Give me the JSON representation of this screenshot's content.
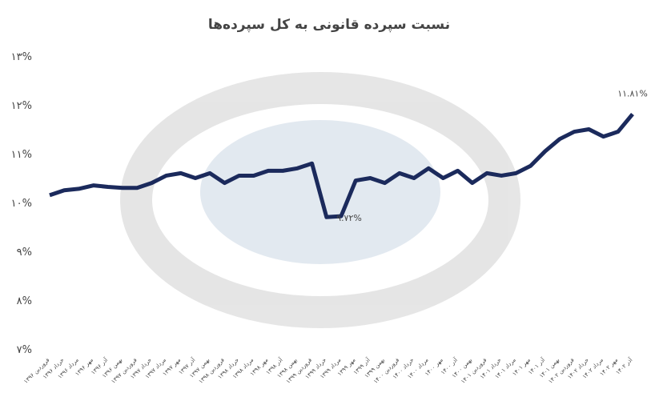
{
  "chart_data": {
    "type": "line",
    "title": "نسبت سپرده قانونی به کل سپرده‌ها",
    "categories": [
      "فروردین ۱۳۹۶",
      "خرداد ۱۳۹۶",
      "مرداد ۱۳۹۶",
      "مهر ۱۳۹۶",
      "آذر ۱۳۹۶",
      "بهمن ۱۳۹۶",
      "فروردین ۱۳۹۷",
      "خرداد ۱۳۹۷",
      "مرداد ۱۳۹۷",
      "مهر ۱۳۹۷",
      "آذر ۱۳۹۷",
      "بهمن ۱۳۹۷",
      "فروردین ۱۳۹۸",
      "خرداد ۱۳۹۸",
      "مرداد ۱۳۹۸",
      "مهر ۱۳۹۸",
      "آذر ۱۳۹۸",
      "بهمن ۱۳۹۸",
      "فروردین ۱۳۹۹",
      "خرداد ۱۳۹۹",
      "مرداد ۱۳۹۹",
      "مهر ۱۳۹۹",
      "آذر ۱۳۹۹",
      "بهمن ۱۳۹۹",
      "فروردین ۱۴۰۰",
      "خرداد ۱۴۰۰",
      "مرداد ۱۴۰۰",
      "مهر ۱۴۰۰",
      "آذر ۱۴۰۰",
      "بهمن ۱۴۰۰",
      "فروردین ۱۴۰۱",
      "خرداد ۱۴۰۱",
      "مرداد ۱۴۰۱",
      "مهر ۱۴۰۱",
      "آذر ۱۴۰۱",
      "بهمن ۱۴۰۱",
      "فروردین ۱۴۰۲",
      "خرداد ۱۴۰۲",
      "مرداد ۱۴۰۲",
      "مهر ۱۴۰۲",
      "آذر ۱۴۰۲"
    ],
    "values": [
      10.15,
      10.25,
      10.28,
      10.35,
      10.32,
      10.3,
      10.3,
      10.4,
      10.55,
      10.6,
      10.5,
      10.6,
      10.4,
      10.55,
      10.55,
      10.65,
      10.65,
      10.7,
      10.8,
      9.7,
      9.72,
      10.45,
      10.5,
      10.4,
      10.6,
      10.5,
      10.7,
      10.5,
      10.65,
      10.4,
      10.6,
      10.55,
      10.6,
      10.75,
      11.05,
      11.3,
      11.45,
      11.5,
      11.35,
      11.45,
      11.81
    ],
    "value_labels": [
      null,
      null,
      null,
      null,
      null,
      null,
      null,
      null,
      null,
      null,
      null,
      null,
      null,
      null,
      null,
      null,
      null,
      null,
      null,
      null,
      "۹.۷۲%",
      null,
      null,
      null,
      null,
      null,
      null,
      null,
      null,
      null,
      null,
      null,
      null,
      null,
      null,
      null,
      null,
      null,
      null,
      null,
      "۱۱.۸۱%"
    ],
    "color": "#1b2a5c",
    "ylim": [
      7,
      13
    ],
    "yticks": [
      {
        "value": 7,
        "label": "۷%"
      },
      {
        "value": 8,
        "label": "۸%"
      },
      {
        "value": 9,
        "label": "۹%"
      },
      {
        "value": 10,
        "label": "۱۰%"
      },
      {
        "value": 11,
        "label": "۱۱%"
      },
      {
        "value": 12,
        "label": "۱۲%"
      },
      {
        "value": 13,
        "label": "۱۳%"
      }
    ]
  }
}
